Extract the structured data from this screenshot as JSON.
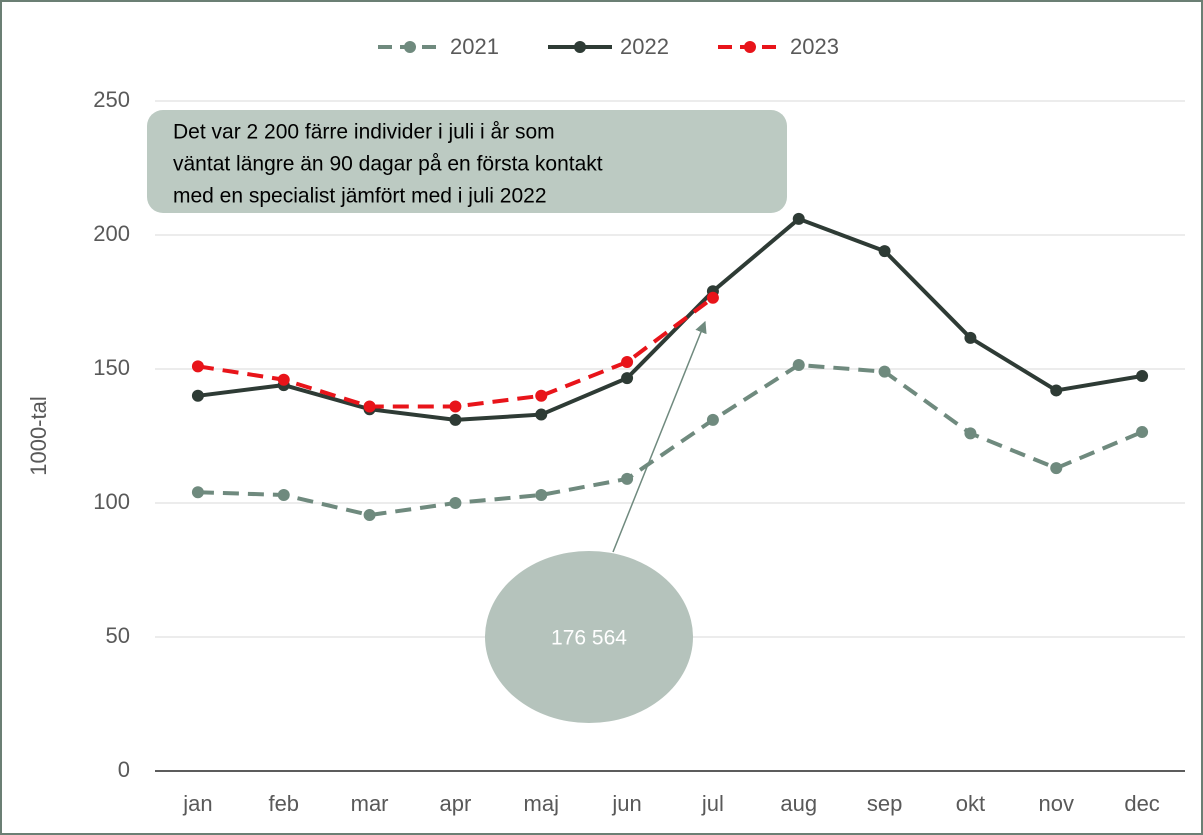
{
  "chart_data": {
    "type": "line",
    "y_label": "1000-tal",
    "categories": [
      "jan",
      "feb",
      "mar",
      "apr",
      "maj",
      "jun",
      "jul",
      "aug",
      "sep",
      "okt",
      "nov",
      "dec"
    ],
    "series": [
      {
        "name": "2021",
        "color": "#6f8a7e",
        "dashed": true,
        "values": [
          104,
          103,
          95.5,
          100,
          103,
          109,
          131,
          151.5,
          149,
          126,
          113,
          126.5
        ]
      },
      {
        "name": "2022",
        "color": "#2e3b35",
        "dashed": false,
        "values": [
          140,
          144,
          135,
          131,
          133,
          146.6,
          179,
          206,
          194,
          161.6,
          142,
          147.4
        ]
      },
      {
        "name": "2023",
        "color": "#e8141a",
        "dashed": true,
        "values": [
          151,
          146,
          136,
          136,
          140,
          152.6,
          176.564,
          null,
          null,
          null,
          null,
          null
        ]
      }
    ],
    "ylim": [
      0,
      250
    ],
    "yticks": [
      0,
      50,
      100,
      150,
      200,
      250
    ],
    "grid": true,
    "legend": "top",
    "annotations": [
      {
        "lines": [
          "Det var 2 200 färre individer i juli i år som",
          "väntat längre än 90 dagar på en första kontakt",
          "med en specialist jämfört med i juli 2022"
        ]
      },
      {
        "text": "176 564"
      }
    ]
  }
}
